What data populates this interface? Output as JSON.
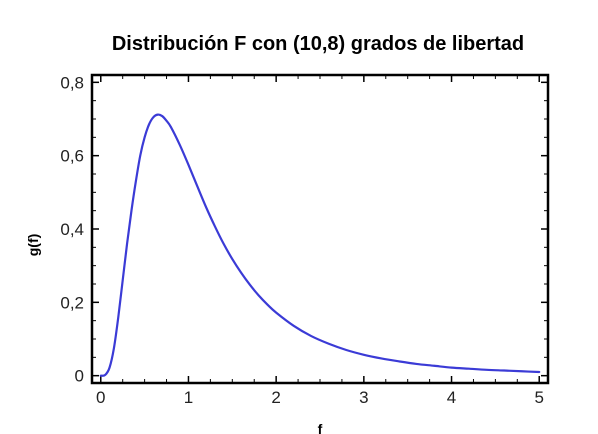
{
  "chart_data": {
    "type": "line",
    "title": "Distribución F con (10,8) grados de libertad",
    "xlabel": "f",
    "ylabel": "g(f)",
    "xlim": [
      -0.1,
      5.1
    ],
    "ylim": [
      -0.02,
      0.82
    ],
    "x_ticks": [
      0,
      1,
      2,
      3,
      4,
      5
    ],
    "x_tick_labels": [
      "0",
      "1",
      "2",
      "3",
      "4",
      "5"
    ],
    "y_ticks": [
      0,
      0.2,
      0.4,
      0.6,
      0.8
    ],
    "y_tick_labels": [
      "0",
      "0,2",
      "0,4",
      "0,6",
      "0,8"
    ],
    "grid": false,
    "line_color": "#3b3bd6",
    "series": [
      {
        "x": [
          0,
          0.05,
          0.1,
          0.15,
          0.2,
          0.25,
          0.3,
          0.35,
          0.4,
          0.45,
          0.5,
          0.55,
          0.6,
          0.65,
          0.7,
          0.75,
          0.8,
          0.9,
          1.0,
          1.1,
          1.2,
          1.3,
          1.4,
          1.5,
          1.6,
          1.7,
          1.8,
          1.9,
          2.0,
          2.2,
          2.4,
          2.6,
          2.8,
          3.0,
          3.2,
          3.4,
          3.6,
          3.8,
          4.0,
          4.2,
          4.4,
          4.6,
          4.8,
          5.0
        ],
        "values": [
          0,
          0.002,
          0.022,
          0.075,
          0.16,
          0.26,
          0.36,
          0.45,
          0.53,
          0.6,
          0.65,
          0.685,
          0.705,
          0.712,
          0.708,
          0.695,
          0.678,
          0.63,
          0.575,
          0.517,
          0.46,
          0.408,
          0.36,
          0.318,
          0.281,
          0.248,
          0.219,
          0.194,
          0.172,
          0.136,
          0.108,
          0.087,
          0.07,
          0.057,
          0.047,
          0.039,
          0.032,
          0.027,
          0.022,
          0.019,
          0.016,
          0.014,
          0.012,
          0.01
        ]
      }
    ]
  }
}
